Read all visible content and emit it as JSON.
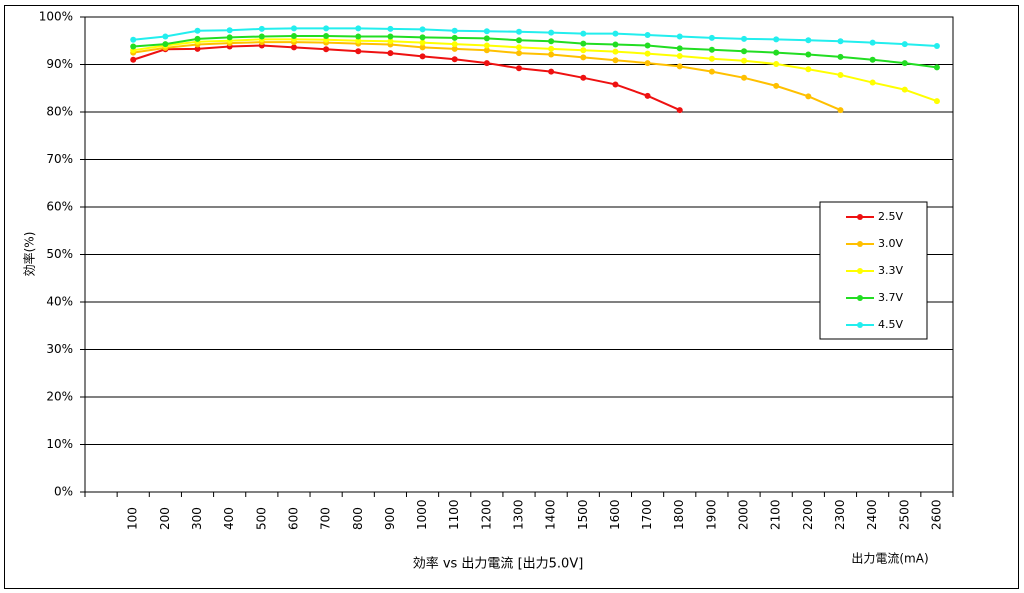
{
  "chart_data": {
    "type": "line",
    "title": "効率 vs 出力電流 [出力5.0V]",
    "y_label": "効率(%)",
    "x_label": "出力電流(mA)",
    "categories": [
      "100",
      "200",
      "300",
      "400",
      "500",
      "600",
      "700",
      "800",
      "900",
      "1000",
      "1100",
      "1200",
      "1300",
      "1400",
      "1500",
      "1600",
      "1700",
      "1800",
      "1900",
      "2000",
      "2100",
      "2200",
      "2300",
      "2400",
      "2500",
      "2600"
    ],
    "series": [
      {
        "name": "2.5V",
        "color": "#ee1111",
        "values": [
          91.0,
          93.2,
          93.3,
          93.8,
          94.0,
          93.6,
          93.2,
          92.8,
          92.4,
          91.7,
          91.1,
          90.3,
          89.2,
          88.5,
          87.2,
          85.8,
          83.4,
          80.4,
          null,
          null,
          null,
          null,
          null,
          null,
          null,
          null
        ]
      },
      {
        "name": "3.0V",
        "color": "#ffc000",
        "values": [
          92.5,
          93.5,
          94.2,
          94.5,
          94.7,
          94.7,
          94.6,
          94.4,
          94.2,
          93.6,
          93.3,
          93.0,
          92.4,
          92.1,
          91.5,
          90.9,
          90.3,
          89.6,
          88.5,
          87.2,
          85.5,
          83.3,
          80.4,
          null,
          null,
          null
        ]
      },
      {
        "name": "3.3V",
        "color": "#ffff00",
        "values": [
          93.0,
          94.0,
          94.8,
          95.0,
          95.3,
          95.3,
          95.2,
          95.0,
          94.9,
          94.6,
          94.3,
          94.0,
          93.6,
          93.3,
          93.0,
          92.7,
          92.3,
          91.8,
          91.2,
          90.8,
          90.1,
          89.0,
          87.8,
          86.2,
          84.7,
          82.3
        ]
      },
      {
        "name": "3.7V",
        "color": "#22dd22",
        "values": [
          93.8,
          94.3,
          95.4,
          95.7,
          95.9,
          96.0,
          96.0,
          95.9,
          95.9,
          95.7,
          95.6,
          95.5,
          95.1,
          94.9,
          94.4,
          94.2,
          94.0,
          93.4,
          93.1,
          92.8,
          92.5,
          92.1,
          91.6,
          91.0,
          90.3,
          89.4
        ]
      },
      {
        "name": "4.5V",
        "color": "#22eeee",
        "values": [
          95.2,
          95.9,
          97.1,
          97.2,
          97.5,
          97.6,
          97.6,
          97.6,
          97.5,
          97.4,
          97.1,
          97.0,
          96.9,
          96.7,
          96.5,
          96.5,
          96.2,
          95.9,
          95.6,
          95.4,
          95.3,
          95.1,
          94.9,
          94.6,
          94.3,
          93.9
        ]
      }
    ],
    "ylim": [
      0,
      100
    ],
    "yticks": [
      {
        "value": 0,
        "label": "0%"
      },
      {
        "value": 10,
        "label": "10%"
      },
      {
        "value": 20,
        "label": "20%"
      },
      {
        "value": 30,
        "label": "30%"
      },
      {
        "value": 40,
        "label": "40%"
      },
      {
        "value": 50,
        "label": "50%"
      },
      {
        "value": 60,
        "label": "60%"
      },
      {
        "value": 70,
        "label": "70%"
      },
      {
        "value": 80,
        "label": "80%"
      },
      {
        "value": 90,
        "label": "90%"
      },
      {
        "value": 100,
        "label": "100%"
      }
    ],
    "grid": true,
    "legend": "right"
  }
}
